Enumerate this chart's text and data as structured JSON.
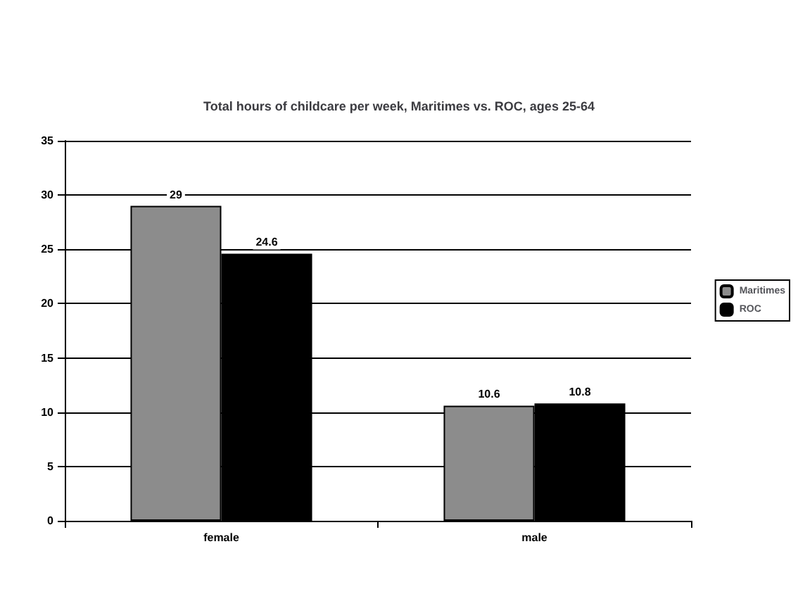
{
  "chart_data": {
    "type": "bar",
    "title": "Total hours of childcare per week, Maritimes vs. ROC, ages 25-64",
    "categories": [
      "female",
      "male"
    ],
    "series": [
      {
        "name": "Maritimes",
        "color": "#8c8c8c",
        "values": [
          29,
          10.6
        ]
      },
      {
        "name": "ROC",
        "color": "#000000",
        "values": [
          24.6,
          10.8
        ]
      }
    ],
    "ylim": [
      0,
      35
    ],
    "yticks": [
      0,
      5,
      10,
      15,
      20,
      25,
      30,
      35
    ],
    "grid": "y",
    "legend": "right",
    "data_labels": true
  }
}
